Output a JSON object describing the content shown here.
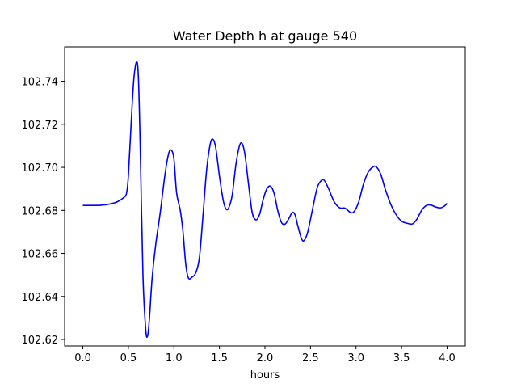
{
  "chart_data": {
    "type": "line",
    "title": "Water Depth h at gauge 540",
    "xlabel": "hours",
    "ylabel": "",
    "xlim": [
      -0.2,
      4.2
    ],
    "ylim": [
      102.617,
      102.756
    ],
    "x_ticks": [
      {
        "value": 0.0,
        "label": "0.0"
      },
      {
        "value": 0.5,
        "label": "0.5"
      },
      {
        "value": 1.0,
        "label": "1.0"
      },
      {
        "value": 1.5,
        "label": "1.5"
      },
      {
        "value": 2.0,
        "label": "2.0"
      },
      {
        "value": 2.5,
        "label": "2.5"
      },
      {
        "value": 3.0,
        "label": "3.0"
      },
      {
        "value": 3.5,
        "label": "3.5"
      },
      {
        "value": 4.0,
        "label": "4.0"
      }
    ],
    "y_ticks": [
      {
        "value": 102.62,
        "label": "102.62"
      },
      {
        "value": 102.64,
        "label": "102.64"
      },
      {
        "value": 102.66,
        "label": "102.66"
      },
      {
        "value": 102.68,
        "label": "102.68"
      },
      {
        "value": 102.7,
        "label": "102.70"
      },
      {
        "value": 102.72,
        "label": "102.72"
      },
      {
        "value": 102.74,
        "label": "102.74"
      }
    ],
    "grid": false,
    "series": [
      {
        "color": "#0000ff",
        "points": [
          [
            0.0,
            102.6823
          ],
          [
            0.1,
            102.6823
          ],
          [
            0.2,
            102.6824
          ],
          [
            0.3,
            102.683
          ],
          [
            0.38,
            102.684
          ],
          [
            0.45,
            102.686
          ],
          [
            0.48,
            102.688
          ],
          [
            0.5,
            102.696
          ],
          [
            0.53,
            102.72
          ],
          [
            0.56,
            102.741
          ],
          [
            0.59,
            102.749
          ],
          [
            0.61,
            102.742
          ],
          [
            0.63,
            102.71
          ],
          [
            0.66,
            102.65
          ],
          [
            0.69,
            102.625
          ],
          [
            0.71,
            102.6215
          ],
          [
            0.73,
            102.629
          ],
          [
            0.76,
            102.648
          ],
          [
            0.8,
            102.664
          ],
          [
            0.85,
            102.679
          ],
          [
            0.9,
            102.696
          ],
          [
            0.94,
            102.706
          ],
          [
            0.97,
            102.708
          ],
          [
            1.0,
            102.704
          ],
          [
            1.03,
            102.688
          ],
          [
            1.07,
            102.68
          ],
          [
            1.1,
            102.67
          ],
          [
            1.13,
            102.655
          ],
          [
            1.16,
            102.6485
          ],
          [
            1.2,
            102.649
          ],
          [
            1.24,
            102.651
          ],
          [
            1.28,
            102.658
          ],
          [
            1.32,
            102.678
          ],
          [
            1.36,
            102.699
          ],
          [
            1.4,
            102.711
          ],
          [
            1.43,
            102.713
          ],
          [
            1.46,
            102.709
          ],
          [
            1.5,
            102.696
          ],
          [
            1.54,
            102.685
          ],
          [
            1.57,
            102.6808
          ],
          [
            1.6,
            102.681
          ],
          [
            1.64,
            102.687
          ],
          [
            1.68,
            102.701
          ],
          [
            1.72,
            102.71
          ],
          [
            1.75,
            102.711
          ],
          [
            1.78,
            102.706
          ],
          [
            1.82,
            102.692
          ],
          [
            1.86,
            102.679
          ],
          [
            1.9,
            102.6756
          ],
          [
            1.94,
            102.678
          ],
          [
            1.98,
            102.685
          ],
          [
            2.02,
            102.69
          ],
          [
            2.06,
            102.6912
          ],
          [
            2.1,
            102.688
          ],
          [
            2.14,
            102.68
          ],
          [
            2.18,
            102.6745
          ],
          [
            2.22,
            102.6736
          ],
          [
            2.26,
            102.676
          ],
          [
            2.3,
            102.679
          ],
          [
            2.33,
            102.678
          ],
          [
            2.36,
            102.673
          ],
          [
            2.4,
            102.667
          ],
          [
            2.43,
            102.666
          ],
          [
            2.47,
            102.67
          ],
          [
            2.52,
            102.68
          ],
          [
            2.57,
            102.69
          ],
          [
            2.61,
            102.6935
          ],
          [
            2.65,
            102.694
          ],
          [
            2.7,
            102.69
          ],
          [
            2.76,
            102.684
          ],
          [
            2.82,
            102.6812
          ],
          [
            2.88,
            102.681
          ],
          [
            2.94,
            102.679
          ],
          [
            2.98,
            102.6795
          ],
          [
            3.03,
            102.684
          ],
          [
            3.08,
            102.692
          ],
          [
            3.13,
            102.6975
          ],
          [
            3.18,
            102.7
          ],
          [
            3.22,
            102.7003
          ],
          [
            3.27,
            102.697
          ],
          [
            3.32,
            102.69
          ],
          [
            3.38,
            102.683
          ],
          [
            3.44,
            102.678
          ],
          [
            3.5,
            102.675
          ],
          [
            3.56,
            102.674
          ],
          [
            3.62,
            102.6737
          ],
          [
            3.67,
            102.676
          ],
          [
            3.72,
            102.68
          ],
          [
            3.77,
            102.6822
          ],
          [
            3.82,
            102.6825
          ],
          [
            3.88,
            102.6815
          ],
          [
            3.93,
            102.6812
          ],
          [
            3.97,
            102.682
          ],
          [
            4.0,
            102.6833
          ]
        ]
      }
    ]
  }
}
